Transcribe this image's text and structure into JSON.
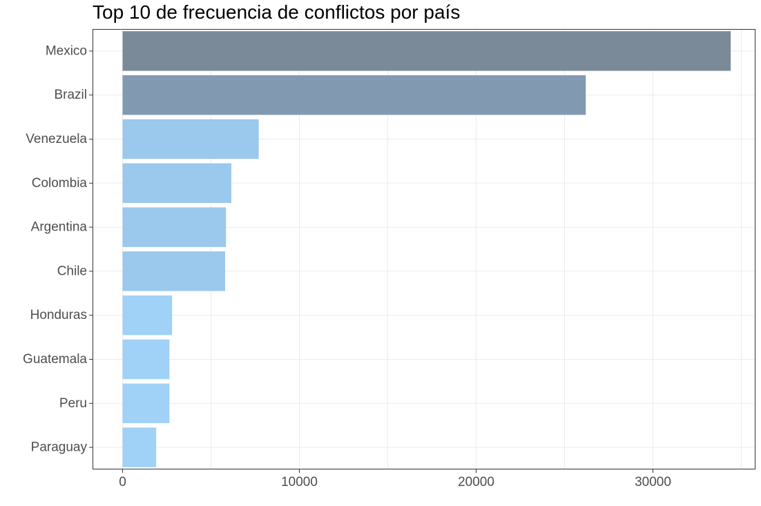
{
  "chart_data": {
    "type": "bar",
    "orientation": "horizontal",
    "title": "Top 10 de frecuencia de conflictos por país",
    "xlabel": "",
    "ylabel": "",
    "categories": [
      "Mexico",
      "Brazil",
      "Venezuela",
      "Colombia",
      "Argentina",
      "Chile",
      "Honduras",
      "Guatemala",
      "Peru",
      "Paraguay"
    ],
    "values": [
      34400,
      26200,
      7700,
      6150,
      5850,
      5800,
      2800,
      2650,
      2650,
      1900
    ],
    "bar_colors": [
      "#7b8a99",
      "#8299b2",
      "#9bc8ed",
      "#9bc8ed",
      "#9bc8ed",
      "#9bc8ed",
      "#a0d1f7",
      "#a0d1f7",
      "#a0d1f7",
      "#a0d1f7"
    ],
    "xlim": [
      -1700,
      35800
    ],
    "xticks": [
      0,
      10000,
      20000,
      30000
    ],
    "xtick_labels": [
      "0",
      "10000",
      "20000",
      "30000"
    ],
    "grid": true,
    "legend": "none"
  }
}
